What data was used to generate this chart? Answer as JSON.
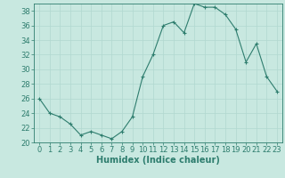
{
  "x": [
    0,
    1,
    2,
    3,
    4,
    5,
    6,
    7,
    8,
    9,
    10,
    11,
    12,
    13,
    14,
    15,
    16,
    17,
    18,
    19,
    20,
    21,
    22,
    23
  ],
  "y": [
    26,
    24,
    23.5,
    22.5,
    21,
    21.5,
    21,
    20.5,
    21.5,
    23.5,
    29,
    32,
    36,
    36.5,
    35,
    39,
    38.5,
    38.5,
    37.5,
    35.5,
    31,
    33.5,
    29,
    27
  ],
  "line_color": "#2e7d6e",
  "marker": "+",
  "marker_size": 3,
  "bg_color": "#c8e8e0",
  "grid_color": "#b0d8d0",
  "xlabel": "Humidex (Indice chaleur)",
  "ylim": [
    20,
    39
  ],
  "xlim": [
    -0.5,
    23.5
  ],
  "yticks": [
    20,
    22,
    24,
    26,
    28,
    30,
    32,
    34,
    36,
    38
  ],
  "xticks": [
    0,
    1,
    2,
    3,
    4,
    5,
    6,
    7,
    8,
    9,
    10,
    11,
    12,
    13,
    14,
    15,
    16,
    17,
    18,
    19,
    20,
    21,
    22,
    23
  ],
  "tick_label_fontsize": 6,
  "xlabel_fontsize": 7,
  "axis_color": "#2e7d6e",
  "tick_color": "#2e7d6e",
  "spine_color": "#2e7d6e"
}
